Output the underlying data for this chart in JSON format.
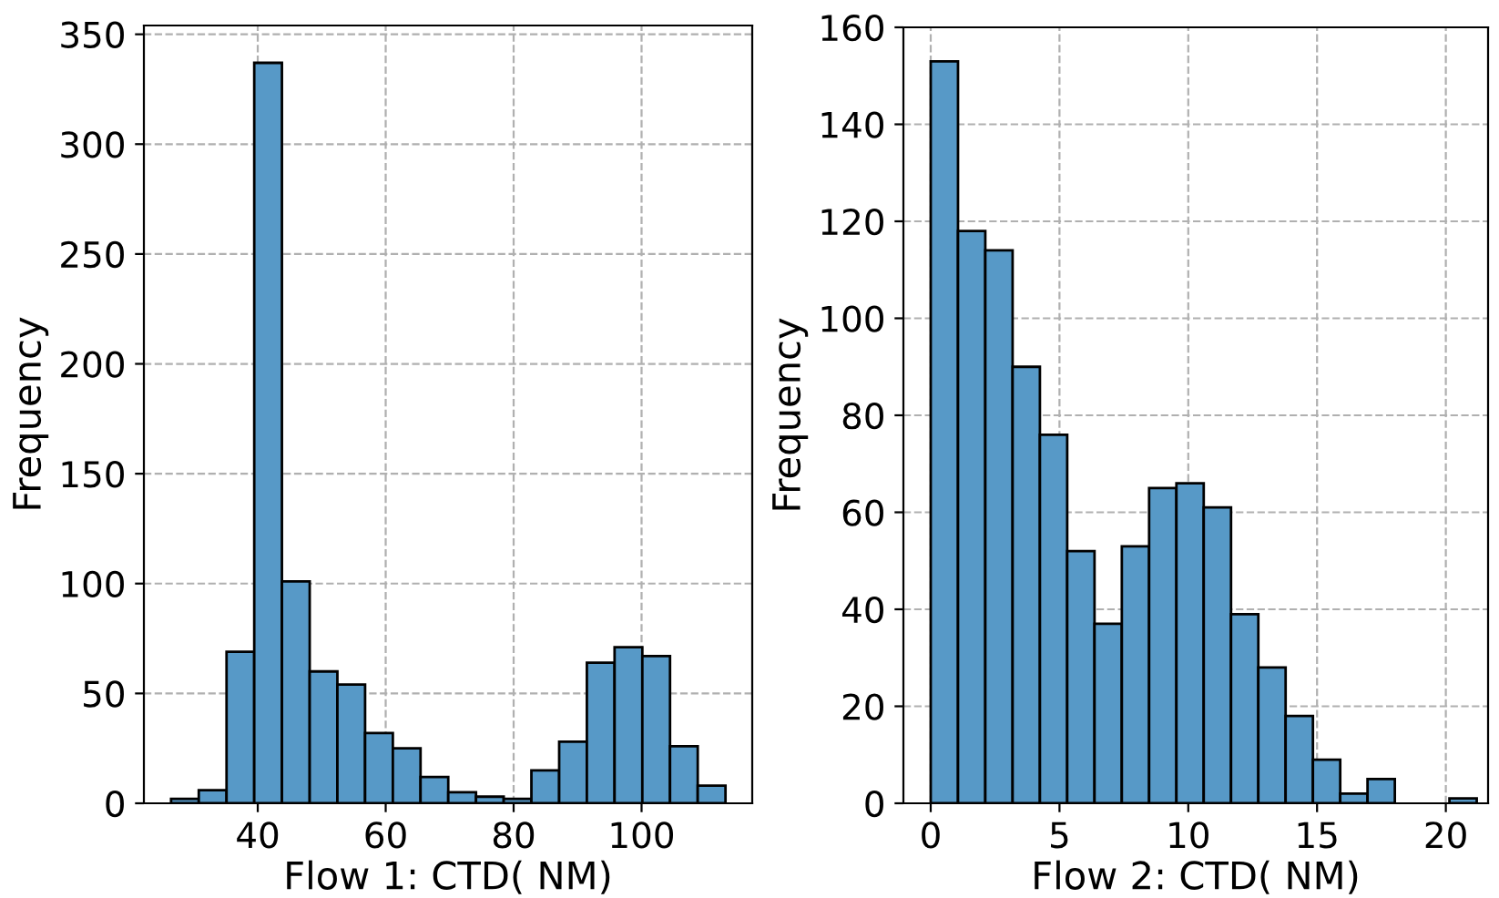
{
  "chart_data": [
    {
      "type": "histogram",
      "xlabel": "Flow 1: CTD( NM)",
      "ylabel": "Frequency",
      "color": "#5799c7",
      "bins": [
        26.45,
        30.78,
        35.12,
        39.45,
        43.78,
        48.12,
        52.45,
        56.78,
        61.12,
        65.45,
        69.78,
        74.12,
        78.45,
        82.78,
        87.12,
        91.45,
        95.78,
        100.12,
        104.45,
        108.78,
        113.12
      ],
      "values": [
        2,
        6,
        69,
        337,
        101,
        60,
        54,
        32,
        25,
        12,
        5,
        3,
        2,
        15,
        28,
        64,
        71,
        67,
        26,
        8
      ],
      "xlim": [
        22.2,
        117.3
      ],
      "xticks": [
        40,
        60,
        80,
        100
      ],
      "ylim": [
        0,
        354
      ],
      "yticks": [
        0,
        50,
        100,
        150,
        200,
        250,
        300,
        350
      ],
      "grid": true
    },
    {
      "type": "histogram",
      "xlabel": "Flow 2: CTD( NM)",
      "ylabel": "Frequency",
      "color": "#5799c7",
      "bins": [
        0,
        1.06,
        2.12,
        3.18,
        4.24,
        5.3,
        6.36,
        7.42,
        8.48,
        9.54,
        10.6,
        11.66,
        12.72,
        13.78,
        14.84,
        15.9,
        16.96,
        18.02,
        19.08,
        20.14,
        21.2
      ],
      "values": [
        153,
        118,
        114,
        90,
        76,
        52,
        37,
        53,
        65,
        66,
        61,
        39,
        28,
        18,
        9,
        2,
        5,
        0,
        0,
        1
      ],
      "xlim": [
        -1.06,
        21.64
      ],
      "xticks": [
        0,
        5,
        10,
        15,
        20
      ],
      "ylim": [
        0,
        160
      ],
      "yticks": [
        0,
        20,
        40,
        60,
        80,
        100,
        120,
        140,
        160
      ],
      "grid": true
    }
  ]
}
